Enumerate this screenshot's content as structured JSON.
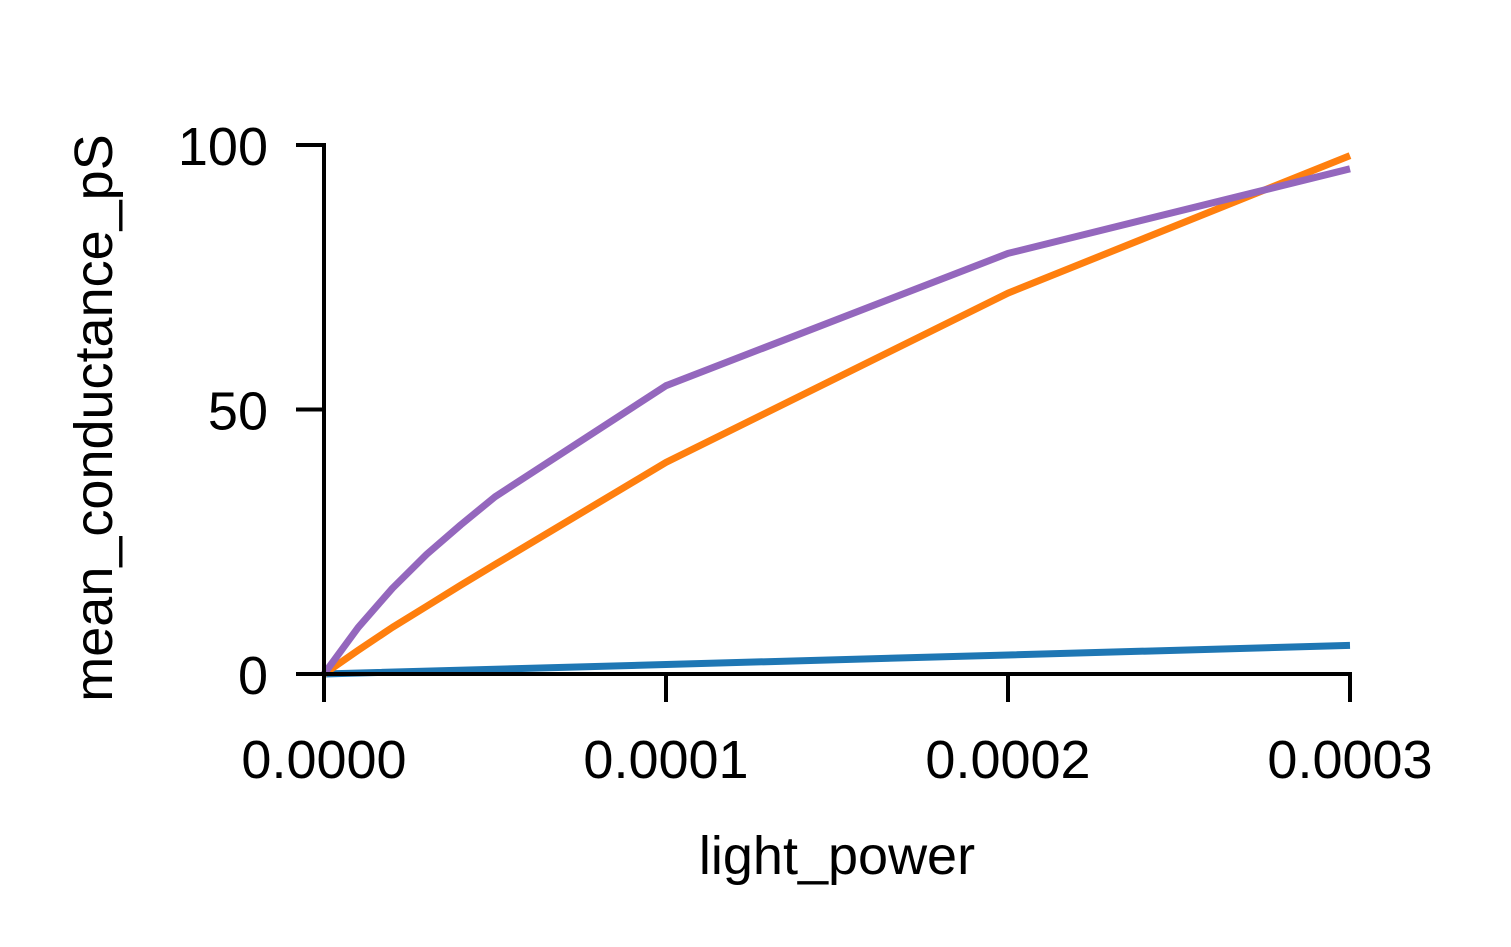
{
  "chart_data": {
    "type": "line",
    "title": "",
    "xlabel": "light_power",
    "ylabel": "mean_conductance_pS",
    "xlim": [
      0,
      0.0003
    ],
    "ylim": [
      0,
      100
    ],
    "xticks": [
      0,
      0.0001,
      0.0002,
      0.0003
    ],
    "xtick_labels": [
      "0.0000",
      "0.0001",
      "0.0002",
      "0.0003"
    ],
    "yticks": [
      0,
      50,
      100
    ],
    "ytick_labels": [
      "0",
      "50",
      "100"
    ],
    "grid": false,
    "legend": "none",
    "series": [
      {
        "color": "#1f77b4",
        "x": [
          0,
          0.0001,
          0.0002,
          0.0003
        ],
        "y": [
          0,
          1.8,
          3.6,
          5.4
        ]
      },
      {
        "color": "#ff7f0e",
        "x": [
          0,
          1e-05,
          2e-05,
          3e-05,
          4e-05,
          5e-05,
          0.0001,
          0.0002,
          0.0003
        ],
        "y": [
          0,
          4.5,
          8.8,
          12.8,
          16.8,
          20.7,
          40,
          72,
          98
        ]
      },
      {
        "color": "#9467bd",
        "x": [
          0,
          1e-05,
          2e-05,
          3e-05,
          4e-05,
          5e-05,
          0.0001,
          0.0002,
          0.0003
        ],
        "y": [
          0,
          8.8,
          16.2,
          22.6,
          28.2,
          33.5,
          54.5,
          79.5,
          95.5
        ]
      }
    ]
  }
}
